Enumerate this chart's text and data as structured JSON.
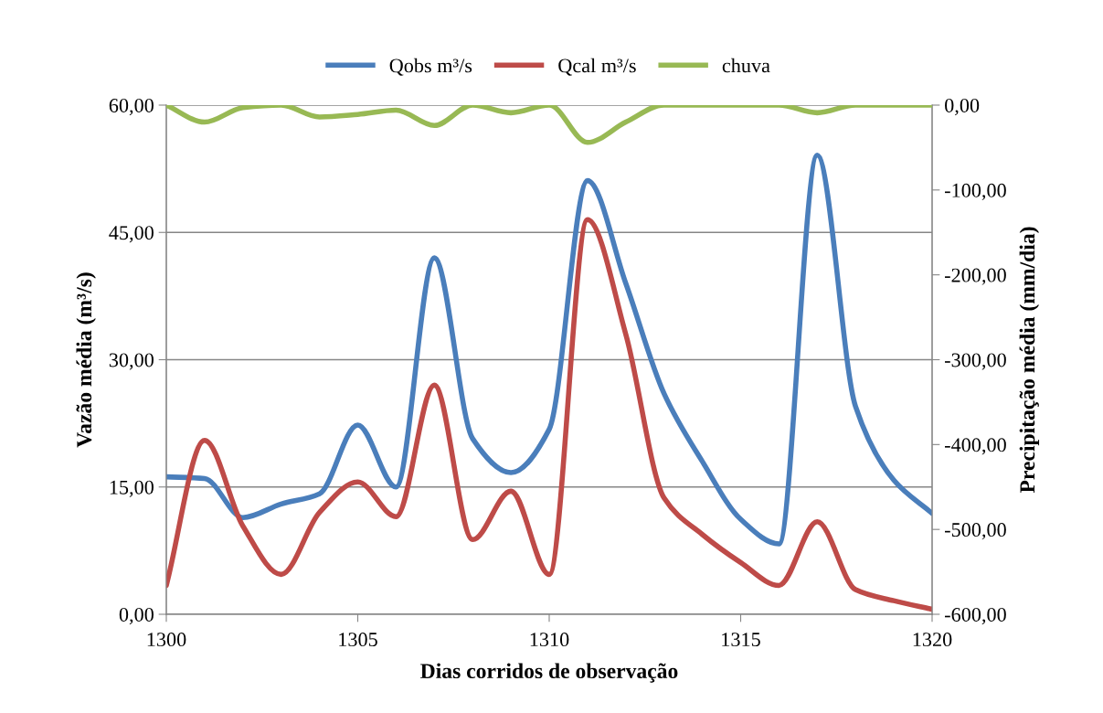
{
  "chart_data": {
    "type": "line",
    "xlabel": "Dias corridos de observação",
    "ylabel": "Vazão média (m³/s)",
    "y2label": "Precipitação média (mm/dia)",
    "x": [
      1300,
      1301,
      1302,
      1303,
      1304,
      1305,
      1306,
      1307,
      1308,
      1309,
      1310,
      1311,
      1312,
      1313,
      1314,
      1315,
      1316,
      1317,
      1318,
      1319,
      1320
    ],
    "series": [
      {
        "name": "Qobs m³/s",
        "color": "#4a7ebb",
        "values": [
          16.2,
          16,
          11.4,
          13,
          14.2,
          22.3,
          15,
          42,
          20.7,
          16.7,
          21.8,
          51.1,
          39,
          26,
          18,
          11.2,
          8.3,
          54.1,
          24.5,
          15.8,
          11.9
        ]
      },
      {
        "name": "Qcal m³/s",
        "color": "#be4b48",
        "values": [
          3.4,
          20.5,
          10.4,
          4.7,
          12,
          15.6,
          11.5,
          27,
          8.8,
          14.5,
          4.7,
          46.5,
          33,
          13.7,
          9.4,
          6.1,
          3.4,
          10.9,
          2.9,
          1.6,
          0.6
        ]
      },
      {
        "name": "chuva",
        "color": "#98b954",
        "axis": "y2",
        "values": [
          0,
          -20,
          -3,
          0,
          -14,
          -11,
          -6,
          -24,
          0,
          -9,
          0,
          -44,
          -20,
          0,
          0,
          0,
          0,
          -9,
          0,
          0,
          0
        ]
      }
    ],
    "xlim": [
      1300,
      1320
    ],
    "xticks": [
      1300,
      1305,
      1310,
      1315,
      1320
    ],
    "ylim": [
      0,
      60
    ],
    "yticks": [
      {
        "value": 0,
        "label": "0,00"
      },
      {
        "value": 15,
        "label": "15,00"
      },
      {
        "value": 30,
        "label": "30,00"
      },
      {
        "value": 45,
        "label": "45,00"
      },
      {
        "value": 60,
        "label": "60,00"
      }
    ],
    "y2lim": [
      -600,
      0
    ],
    "y2ticks": [
      {
        "value": -600,
        "label": "-600,00"
      },
      {
        "value": -500,
        "label": "-500,00"
      },
      {
        "value": -400,
        "label": "-400,00"
      },
      {
        "value": -300,
        "label": "-300,00"
      },
      {
        "value": -200,
        "label": "-200,00"
      },
      {
        "value": -100,
        "label": "-100,00"
      },
      {
        "value": 0,
        "label": "0,00"
      }
    ],
    "grid": "y",
    "legend": "top",
    "marker": "none",
    "line_style": "solid"
  }
}
